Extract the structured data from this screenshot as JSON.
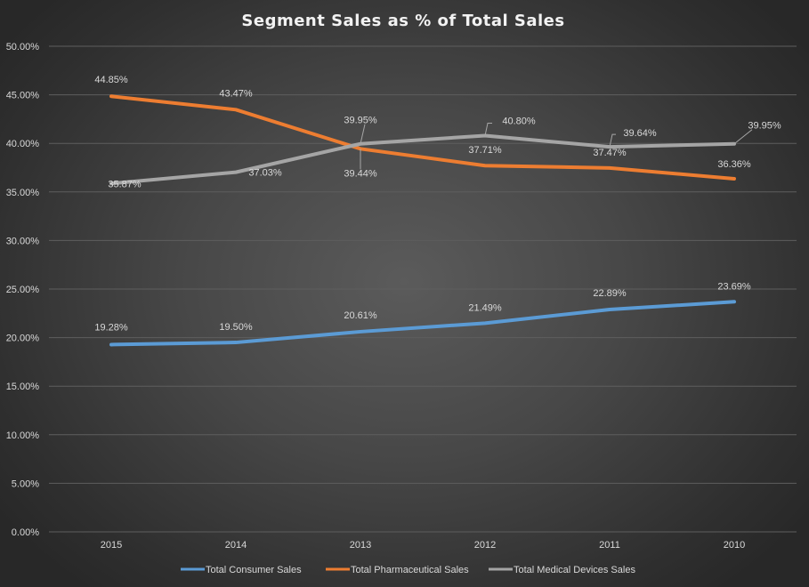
{
  "chart_data": {
    "type": "line",
    "title": "Segment Sales as % of Total Sales",
    "xlabel": "",
    "ylabel": "",
    "categories": [
      "2015",
      "2014",
      "2013",
      "2012",
      "2011",
      "2010"
    ],
    "ylim": [
      0,
      50
    ],
    "ytick_step": 5,
    "ytick_labels": [
      "0.00%",
      "5.00%",
      "10.00%",
      "15.00%",
      "20.00%",
      "25.00%",
      "30.00%",
      "35.00%",
      "40.00%",
      "45.00%",
      "50.00%"
    ],
    "grid": true,
    "legend_position": "bottom",
    "series": [
      {
        "name": "Total Consumer Sales",
        "color": "#5b9bd5",
        "values": [
          19.28,
          19.5,
          20.61,
          21.49,
          22.89,
          23.69
        ],
        "labels": [
          "19.28%",
          "19.50%",
          "20.61%",
          "21.49%",
          "22.89%",
          "23.69%"
        ]
      },
      {
        "name": "Total Pharmaceutical Sales",
        "color": "#ed7d31",
        "values": [
          44.85,
          43.47,
          39.44,
          37.71,
          37.47,
          36.36
        ],
        "labels": [
          "44.85%",
          "43.47%",
          "39.44%",
          "37.71%",
          "37.47%",
          "36.36%"
        ]
      },
      {
        "name": "Total Medical Devices Sales",
        "color": "#a5a5a5",
        "values": [
          35.87,
          37.03,
          39.95,
          40.8,
          39.64,
          39.95
        ],
        "labels": [
          "35.87%",
          "37.03%",
          "39.95%",
          "40.80%",
          "39.64%",
          "39.95%"
        ]
      }
    ]
  }
}
